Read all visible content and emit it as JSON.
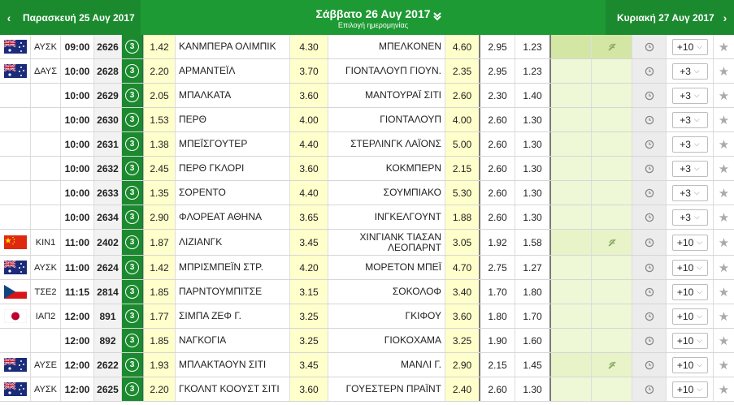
{
  "header": {
    "prev_day": "Παρασκευή 25 Αυγ 2017",
    "current_day": "Σάββατο 26 Αυγ 2017",
    "subtitle": "Επιλογή ημερομηνίας",
    "next_day": "Κυριακή 27 Αυγ 2017",
    "prev_arrow": "‹",
    "next_arrow": "›"
  },
  "colors": {
    "header_green": "#1e9a34",
    "odds_yellow": "#ffffcc",
    "live_green_light": "#e8f3c8"
  },
  "rows": [
    {
      "flag": "australia",
      "league": "ΑΥΣΚ",
      "time": "09:00",
      "code": "2626",
      "badge": "3",
      "o1": "1.42",
      "home": "ΚΑΝΜΠΕΡΑ ΟΛΙΜΠΙΚ",
      "ox": "4.30",
      "away": "ΜΠΕΛΚΟΝΕΝ",
      "o2": "4.60",
      "under": "2.95",
      "over": "1.23",
      "more": "+10",
      "nolive": true,
      "bg": "mid"
    },
    {
      "flag": "australia",
      "league": "ΔΑΥΣ",
      "time": "10:00",
      "code": "2628",
      "badge": "3",
      "o1": "2.20",
      "home": "ΑΡΜΑΝΤΕΪΛ",
      "ox": "3.70",
      "away": "ΓΙΟΝΤΑΛΟΥΠ ΓΙΟΥΝ.",
      "o2": "2.35",
      "under": "2.95",
      "over": "1.23",
      "more": "+3",
      "nolive": false,
      "bg": "pale"
    },
    {
      "flag": "",
      "league": "",
      "time": "10:00",
      "code": "2629",
      "badge": "3",
      "o1": "2.05",
      "home": "ΜΠΑΛΚΑΤΑ",
      "ox": "3.60",
      "away": "ΜΑΝΤΟΥΡΑΪ ΣΙΤΙ",
      "o2": "2.60",
      "under": "2.30",
      "over": "1.40",
      "more": "+3",
      "nolive": false,
      "bg": "pale"
    },
    {
      "flag": "",
      "league": "",
      "time": "10:00",
      "code": "2630",
      "badge": "3",
      "o1": "1.53",
      "home": "ΠΕΡΘ",
      "ox": "4.00",
      "away": "ΓΙΟΝΤΑΛΟΥΠ",
      "o2": "4.00",
      "under": "2.60",
      "over": "1.30",
      "more": "+3",
      "nolive": false,
      "bg": "pale"
    },
    {
      "flag": "",
      "league": "",
      "time": "10:00",
      "code": "2631",
      "badge": "3",
      "o1": "1.38",
      "home": "ΜΠΕΪΣΓΟΥΤΕΡ",
      "ox": "4.40",
      "away": "ΣΤΕΡΛΙΝΓΚ ΛΑΪΟΝΣ",
      "o2": "5.00",
      "under": "2.60",
      "over": "1.30",
      "more": "+3",
      "nolive": false,
      "bg": "pale"
    },
    {
      "flag": "",
      "league": "",
      "time": "10:00",
      "code": "2632",
      "badge": "3",
      "o1": "2.45",
      "home": "ΠΕΡΘ ΓΚΛΟΡΙ",
      "ox": "3.60",
      "away": "ΚΟΚΜΠΕΡΝ",
      "o2": "2.15",
      "under": "2.60",
      "over": "1.30",
      "more": "+3",
      "nolive": false,
      "bg": "pale"
    },
    {
      "flag": "",
      "league": "",
      "time": "10:00",
      "code": "2633",
      "badge": "3",
      "o1": "1.35",
      "home": "ΣΟΡΕΝΤΟ",
      "ox": "4.40",
      "away": "ΣΟΥΜΠΙΑΚΟ",
      "o2": "5.30",
      "under": "2.60",
      "over": "1.30",
      "more": "+3",
      "nolive": false,
      "bg": "pale"
    },
    {
      "flag": "",
      "league": "",
      "time": "10:00",
      "code": "2634",
      "badge": "3",
      "o1": "2.90",
      "home": "ΦΛΟΡΕΑΤ ΑΘΗΝΑ",
      "ox": "3.65",
      "away": "ΙΝΓΚΕΛΓΟΥΝΤ",
      "o2": "1.88",
      "under": "2.60",
      "over": "1.30",
      "more": "+3",
      "nolive": false,
      "bg": "pale"
    },
    {
      "flag": "china",
      "league": "ΚΙΝ1",
      "time": "11:00",
      "code": "2402",
      "badge": "3",
      "o1": "1.87",
      "home": "ΛΙΖΙΑΝΓΚ",
      "ox": "3.45",
      "away": "ΧΙΝΓΙΑΝΚ ΤΙΑΣΑΝ ΛΕΟΠΑΡΝΤ",
      "o2": "3.05",
      "under": "1.92",
      "over": "1.58",
      "more": "+10",
      "nolive": true,
      "bg": "light",
      "tall": true
    },
    {
      "flag": "australia",
      "league": "ΑΥΣΚ",
      "time": "11:00",
      "code": "2624",
      "badge": "3",
      "o1": "1.42",
      "home": "ΜΠΡΙΣΜΠΕΪΝ ΣΤΡ.",
      "ox": "4.20",
      "away": "ΜΟΡΕΤΟΝ ΜΠΕΪ",
      "o2": "4.70",
      "under": "2.75",
      "over": "1.27",
      "more": "+10",
      "nolive": false,
      "bg": "pale"
    },
    {
      "flag": "czech",
      "league": "ΤΣΕ2",
      "time": "11:15",
      "code": "2814",
      "badge": "3",
      "o1": "1.85",
      "home": "ΠΑΡΝΤΟΥΜΠΙΤΣΕ",
      "ox": "3.15",
      "away": "ΣΟΚΟΛΟΦ",
      "o2": "3.40",
      "under": "1.70",
      "over": "1.80",
      "more": "+10",
      "nolive": false,
      "bg": "pale"
    },
    {
      "flag": "japan",
      "league": "ΙΑΠ2",
      "time": "12:00",
      "code": "891",
      "badge": "3",
      "o1": "1.77",
      "home": "ΣΙΜΠΑ ΖΕΦ Γ.",
      "ox": "3.25",
      "away": "ΓΚΙΦΟΥ",
      "o2": "3.60",
      "under": "1.80",
      "over": "1.70",
      "more": "+10",
      "nolive": false,
      "bg": "pale"
    },
    {
      "flag": "",
      "league": "",
      "time": "12:00",
      "code": "892",
      "badge": "3",
      "o1": "1.85",
      "home": "ΝΑΓΚΟΓΙΑ",
      "ox": "3.25",
      "away": "ΓΙΟΚΟΧΑΜΑ",
      "o2": "3.25",
      "under": "1.90",
      "over": "1.60",
      "more": "+10",
      "nolive": false,
      "bg": "pale"
    },
    {
      "flag": "australia",
      "league": "ΑΥΣΕ",
      "time": "12:00",
      "code": "2622",
      "badge": "3",
      "o1": "1.93",
      "home": "ΜΠΛΑΚΤΑΟΥΝ ΣΙΤΙ",
      "ox": "3.45",
      "away": "ΜΑΝΛΙ Γ.",
      "o2": "2.90",
      "under": "2.15",
      "over": "1.45",
      "more": "+10",
      "nolive": true,
      "bg": "light"
    },
    {
      "flag": "australia",
      "league": "ΑΥΣΚ",
      "time": "12:00",
      "code": "2625",
      "badge": "3",
      "o1": "2.20",
      "home": "ΓΚΟΛΝΤ ΚΟΟΥΣΤ ΣΙΤΙ",
      "ox": "3.60",
      "away": "ΓΟΥΕΣΤΕΡΝ ΠΡΑΪΝΤ",
      "o2": "2.40",
      "under": "2.60",
      "over": "1.30",
      "more": "+10",
      "nolive": false,
      "bg": "pale"
    }
  ]
}
